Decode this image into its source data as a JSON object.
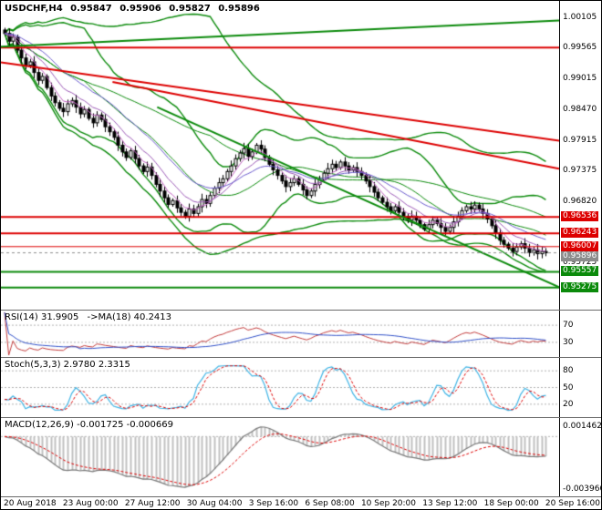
{
  "header": {
    "symbol": "USDCHF,H4",
    "open": "0.95847",
    "high": "0.95906",
    "low": "0.95827",
    "close": "0.95896"
  },
  "main": {
    "axis_ticks": [
      {
        "label": "1.00105",
        "price": 1.00105
      },
      {
        "label": "0.99565",
        "price": 0.99565
      },
      {
        "label": "0.99015",
        "price": 0.99015
      },
      {
        "label": "0.98470",
        "price": 0.9847
      },
      {
        "label": "0.97915",
        "price": 0.97915
      },
      {
        "label": "0.97375",
        "price": 0.97375
      },
      {
        "label": "0.96820",
        "price": 0.9682
      },
      {
        "label": "0.95725",
        "price": 0.95725
      }
    ],
    "badges": [
      {
        "label": "0.96536",
        "price": 0.96536,
        "color": "#dd0000"
      },
      {
        "label": "0.96243",
        "price": 0.96243,
        "color": "#dd0000"
      },
      {
        "label": "0.96007",
        "price": 0.96007,
        "color": "#dd0000"
      },
      {
        "label": "0.95896",
        "price": 0.95896,
        "color": "#8c8c8c"
      },
      {
        "label": "0.95557",
        "price": 0.95557,
        "color": "#0b8a0b"
      },
      {
        "label": "0.95275",
        "price": 0.95275,
        "color": "#0b8a0b"
      }
    ]
  },
  "rsi": {
    "label": "RSI(14) 31.9905",
    "label2": "->MA(18) 40.2413",
    "levels": [
      70,
      30
    ],
    "colors": {
      "main": "#c23b3b",
      "ma": "#3050c8",
      "level": "#b0b0b0"
    }
  },
  "stoch": {
    "label": "Stoch(5,3,3) 2.9780 2.3315",
    "levels": [
      80,
      50,
      20
    ],
    "colors": {
      "k": "#40b4e5",
      "d": "#dd0000",
      "level": "#b0b0b0"
    }
  },
  "macd": {
    "label": "MACD(12,26,9) -0.001725 -0.000669",
    "axis_top": "0.001462",
    "axis_bottom": "-0.003960",
    "colors": {
      "hist": "#c0c0c0",
      "line": "#7a7a7a",
      "signal": "#dd0000",
      "zero": "#b0b0b0"
    }
  },
  "chart_data": {
    "type": "candlestick",
    "title": "USDCHF H4",
    "price_range": {
      "max": 1.004,
      "min": 0.9488
    },
    "x_labels": [
      "20 Aug 2018",
      "23 Aug 00:00",
      "27 Aug 12:00",
      "30 Aug 04:00",
      "3 Sep 16:00",
      "6 Sep 08:00",
      "10 Sep 20:00",
      "13 Sep 12:00",
      "18 Sep 00:00",
      "20 Sep 16:00"
    ],
    "last_ohlc": {
      "open": 0.95847,
      "high": 0.95906,
      "low": 0.95827,
      "close": 0.95896
    },
    "closes": [
      0.9982,
      0.9968,
      0.9975,
      0.9952,
      0.9938,
      0.9925,
      0.9931,
      0.9912,
      0.9898,
      0.9905,
      0.9885,
      0.987,
      0.9858,
      0.9848,
      0.9842,
      0.9856,
      0.9862,
      0.985,
      0.9838,
      0.9846,
      0.983,
      0.9822,
      0.9836,
      0.9828,
      0.9815,
      0.9806,
      0.9796,
      0.9782,
      0.977,
      0.976,
      0.9772,
      0.9758,
      0.9745,
      0.9735,
      0.9743,
      0.9728,
      0.9712,
      0.97,
      0.9688,
      0.9676,
      0.9683,
      0.967,
      0.9662,
      0.9655,
      0.9668,
      0.966,
      0.9672,
      0.9685,
      0.9678,
      0.9692,
      0.9705,
      0.9715,
      0.9722,
      0.9735,
      0.9745,
      0.9758,
      0.9768,
      0.9776,
      0.9762,
      0.977,
      0.9782,
      0.9775,
      0.976,
      0.9748,
      0.9738,
      0.9728,
      0.9718,
      0.9708,
      0.9715,
      0.9722,
      0.9712,
      0.9702,
      0.9692,
      0.97,
      0.9712,
      0.972,
      0.9732,
      0.974,
      0.9748,
      0.9742,
      0.9752,
      0.9745,
      0.9738,
      0.9742,
      0.9735,
      0.9728,
      0.9718,
      0.9708,
      0.9698,
      0.9688,
      0.968,
      0.9672,
      0.9665,
      0.9672,
      0.9662,
      0.9655,
      0.9648,
      0.9655,
      0.9648,
      0.964,
      0.9632,
      0.964,
      0.9648,
      0.9642,
      0.9635,
      0.9628,
      0.9635,
      0.9645,
      0.9655,
      0.9665,
      0.9672,
      0.9668,
      0.9675,
      0.9668,
      0.966,
      0.965,
      0.9638,
      0.9625,
      0.9612,
      0.9605,
      0.9598,
      0.9592,
      0.96,
      0.9606,
      0.9598,
      0.959,
      0.9595,
      0.9588,
      0.9592,
      0.95896
    ],
    "overlays": {
      "bollinger": [
        {
          "period": 20,
          "dev": 2.0,
          "color": "#0b8a0b"
        },
        {
          "period": 50,
          "dev": 2.2,
          "color": "#0b8a0b"
        }
      ],
      "emas": [
        {
          "period": 5,
          "color": "#c060c0"
        },
        {
          "period": 10,
          "color": "#9b59b6"
        },
        {
          "period": 20,
          "color": "#6a5acd"
        }
      ]
    },
    "objects": [
      {
        "type": "hline",
        "price": 0.99565,
        "color": "#dd0000",
        "width": 2
      },
      {
        "type": "hline",
        "price": 0.96536,
        "color": "#dd0000",
        "width": 2
      },
      {
        "type": "hline",
        "price": 0.96243,
        "color": "#dd0000",
        "width": 2
      },
      {
        "type": "hline",
        "price": 0.96007,
        "color": "#dd0000",
        "width": 1
      },
      {
        "type": "hline",
        "price": 0.95557,
        "color": "#0b8a0b",
        "width": 2
      },
      {
        "type": "hline",
        "price": 0.95275,
        "color": "#0b8a0b",
        "width": 2
      },
      {
        "type": "trend",
        "x1": 0.0,
        "p1": 0.9958,
        "x2": 1.0,
        "p2": 1.0005,
        "color": "#0b8a0b",
        "width": 2
      },
      {
        "type": "trend",
        "x1": 0.0,
        "p1": 0.993,
        "x2": 1.0,
        "p2": 0.979,
        "color": "#dd0000",
        "width": 2
      },
      {
        "type": "trend",
        "x1": 0.2,
        "p1": 0.9895,
        "x2": 1.0,
        "p2": 0.974,
        "color": "#dd0000",
        "width": 2
      },
      {
        "type": "trend",
        "x1": 0.28,
        "p1": 0.985,
        "x2": 1.0,
        "p2": 0.9528,
        "color": "#0b8a0b",
        "width": 2
      }
    ],
    "current_price_line": {
      "price": 0.95896,
      "color": "#8c8c8c"
    }
  }
}
